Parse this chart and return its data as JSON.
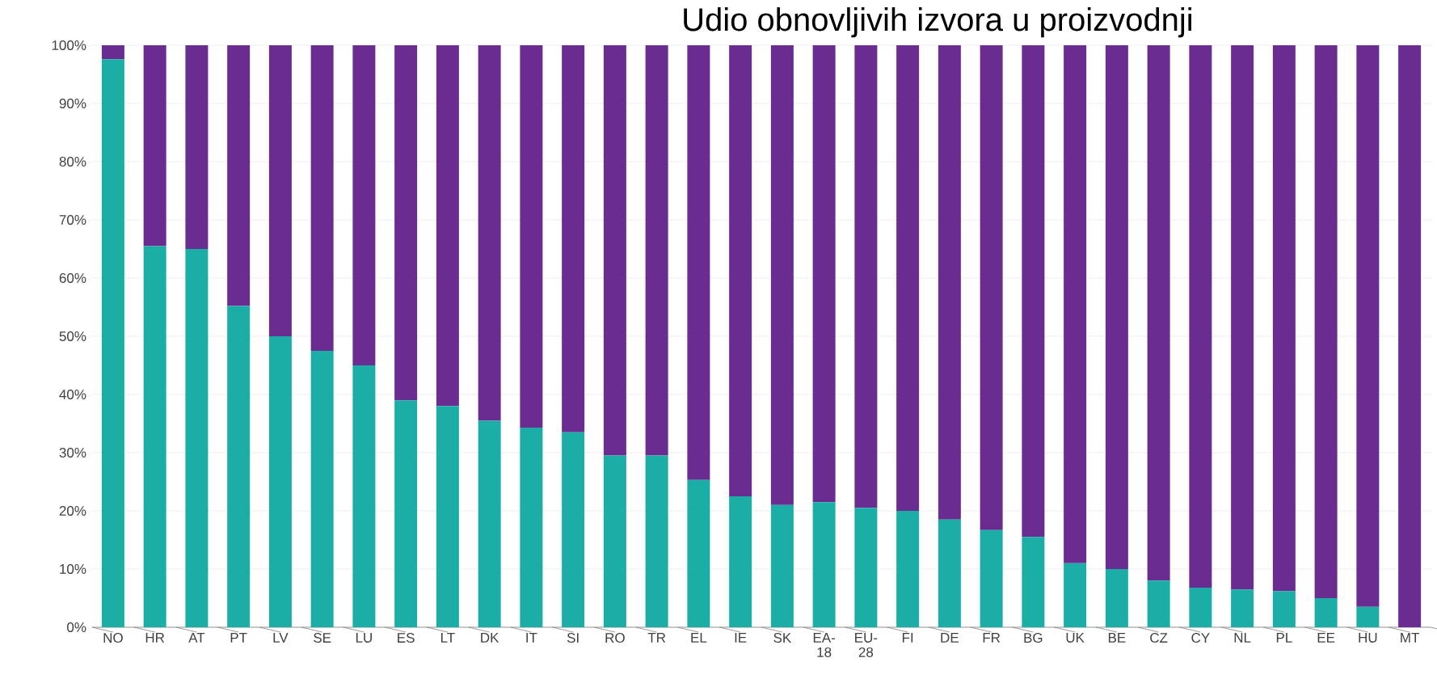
{
  "chart_data": {
    "type": "bar",
    "title": "Udio obnovljivih izvora u proizvodnji",
    "stacked": true,
    "categories": [
      "NO",
      "HR",
      "AT",
      "PT",
      "LV",
      "SE",
      "LU",
      "ES",
      "LT",
      "DK",
      "IT",
      "SI",
      "RO",
      "TR",
      "EL",
      "IE",
      "SK",
      "EA-18",
      "EU-28",
      "FI",
      "DE",
      "FR",
      "BG",
      "UK",
      "BE",
      "CZ",
      "CY",
      "NL",
      "PL",
      "EE",
      "HU",
      "MT"
    ],
    "series": [
      {
        "color": "#1aaea6",
        "values": [
          97.6,
          65.5,
          65,
          55.2,
          50,
          47.5,
          45,
          39,
          38,
          35.5,
          34.3,
          33.5,
          29.5,
          29.5,
          25.3,
          22.5,
          21,
          21.5,
          20.5,
          20,
          18.5,
          16.7,
          15.5,
          11,
          10,
          8,
          6.8,
          6.5,
          6.2,
          5,
          3.5,
          0
        ]
      },
      {
        "color": "#6a2c91",
        "values": [
          2.4,
          34.5,
          35,
          44.8,
          50,
          52.5,
          55,
          61,
          62,
          64.5,
          65.7,
          66.5,
          70.5,
          70.5,
          74.7,
          77.5,
          79,
          78.5,
          79.5,
          80,
          81.5,
          83.3,
          84.5,
          89,
          90,
          92,
          93.2,
          93.5,
          93.8,
          95,
          96.5,
          100
        ]
      }
    ],
    "ylim": [
      0,
      100
    ],
    "yticks": [
      {
        "value": 0,
        "label": "0%"
      },
      {
        "value": 10,
        "label": "10%"
      },
      {
        "value": 20,
        "label": "20%"
      },
      {
        "value": 30,
        "label": "30%"
      },
      {
        "value": 40,
        "label": "40%"
      },
      {
        "value": 50,
        "label": "50%"
      },
      {
        "value": 60,
        "label": "60%"
      },
      {
        "value": 70,
        "label": "70%"
      },
      {
        "value": 80,
        "label": "80%"
      },
      {
        "value": 90,
        "label": "90%"
      },
      {
        "value": 100,
        "label": "100%"
      }
    ],
    "grid": "y"
  }
}
